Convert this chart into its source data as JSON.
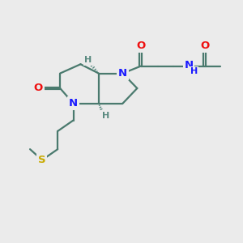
{
  "bg_color": "#ebebeb",
  "bond_color": "#4a7a6e",
  "N_color": "#1a1aff",
  "O_color": "#ee1111",
  "S_color": "#c8aa00",
  "H_color": "#5a8a80",
  "lw": 1.6,
  "fs": 9.5,
  "fsH": 8.0,
  "xlim": [
    0,
    10
  ],
  "ylim": [
    0,
    10
  ]
}
